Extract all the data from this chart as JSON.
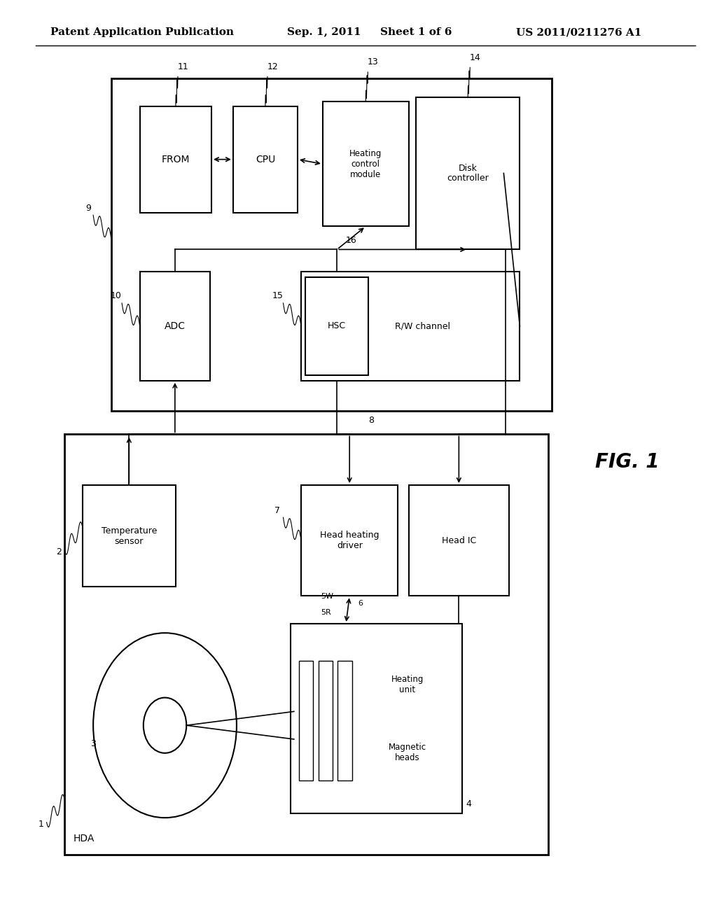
{
  "bg_color": "#ffffff",
  "header_text": "Patent Application Publication",
  "header_date": "Sep. 1, 2011",
  "header_sheet": "Sheet 1 of 6",
  "header_patent": "US 2011/0211276 A1",
  "fig_label": "FIG. 1",
  "header_fontsize": 11
}
